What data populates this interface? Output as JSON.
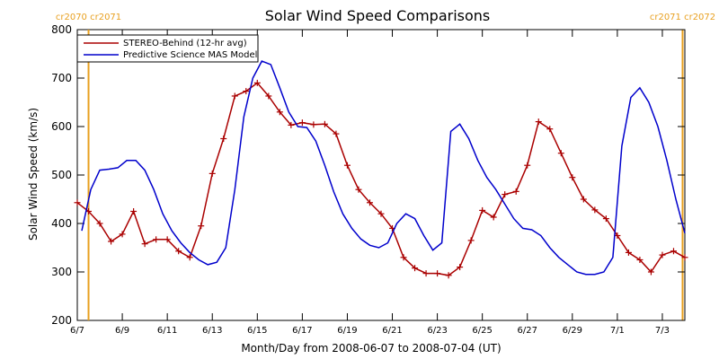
{
  "chart_data": {
    "type": "line",
    "title": "Solar Wind Speed Comparisons",
    "xlabel": "Month/Day from 2008-06-07 to 2008-07-04 (UT)",
    "ylabel": "Solar Wind Speed (km/s)",
    "xlim_days": [
      0,
      27
    ],
    "ylim": [
      200,
      800
    ],
    "yticks": [
      200,
      300,
      400,
      500,
      600,
      700,
      800
    ],
    "xtick_labels": [
      "6/7",
      "6/9",
      "6/11",
      "6/13",
      "6/15",
      "6/17",
      "6/19",
      "6/21",
      "6/23",
      "6/25",
      "6/27",
      "6/29",
      "7/1",
      "7/3"
    ],
    "xtick_days": [
      0,
      2,
      4,
      6,
      8,
      10,
      12,
      14,
      16,
      18,
      20,
      22,
      24,
      26
    ],
    "grid": false,
    "legend_placement": "top-left",
    "rotations": [
      {
        "labels": [
          "cr2070",
          "cr2071"
        ],
        "day": 0.5
      },
      {
        "labels": [
          "cr2071",
          "cr2072"
        ],
        "day": 26.9
      }
    ],
    "series": [
      {
        "name": "STEREO-Behind (12-hr avg)",
        "color": "#aa0000",
        "marker": "+",
        "x": [
          0.0,
          0.5,
          1.0,
          1.5,
          2.0,
          2.5,
          3.0,
          3.5,
          4.0,
          4.5,
          5.0,
          5.5,
          6.0,
          6.5,
          7.0,
          7.5,
          8.0,
          8.5,
          9.0,
          9.5,
          10.0,
          10.5,
          11.0,
          11.5,
          12.0,
          12.5,
          13.0,
          13.5,
          14.0,
          14.5,
          15.0,
          15.5,
          16.0,
          16.5,
          17.0,
          17.5,
          18.0,
          18.5,
          19.0,
          19.5,
          20.0,
          20.5,
          21.0,
          21.5,
          22.0,
          22.5,
          23.0,
          23.5,
          24.0,
          24.5,
          25.0,
          25.5,
          26.0,
          26.5,
          27.0
        ],
        "y": [
          443,
          425,
          400,
          363,
          378,
          425,
          358,
          367,
          367,
          343,
          330,
          395,
          503,
          575,
          663,
          673,
          690,
          663,
          630,
          603,
          608,
          604,
          605,
          585,
          520,
          470,
          443,
          420,
          390,
          330,
          308,
          297,
          297,
          293,
          310,
          365,
          427,
          413,
          460,
          466,
          520,
          610,
          595,
          545,
          495,
          450,
          428,
          410,
          375,
          340,
          325,
          300,
          335,
          343,
          330
        ]
      },
      {
        "name": "Predictive Science MAS Model",
        "color": "#0000cc",
        "marker": "",
        "x": [
          0.2,
          0.6,
          1.0,
          1.4,
          1.8,
          2.2,
          2.6,
          3.0,
          3.4,
          3.8,
          4.2,
          4.6,
          5.0,
          5.4,
          5.8,
          6.2,
          6.6,
          7.0,
          7.4,
          7.8,
          8.2,
          8.6,
          9.0,
          9.4,
          9.8,
          10.2,
          10.6,
          11.0,
          11.4,
          11.8,
          12.2,
          12.6,
          13.0,
          13.4,
          13.8,
          14.2,
          14.6,
          15.0,
          15.4,
          15.8,
          16.2,
          16.6,
          17.0,
          17.4,
          17.8,
          18.2,
          18.6,
          19.0,
          19.4,
          19.8,
          20.2,
          20.6,
          21.0,
          21.4,
          21.8,
          22.2,
          22.6,
          23.0,
          23.4,
          23.8,
          24.2,
          24.6,
          25.0,
          25.4,
          25.8,
          26.2,
          26.6,
          27.0
        ],
        "y": [
          385,
          470,
          510,
          512,
          515,
          530,
          530,
          510,
          470,
          420,
          385,
          360,
          340,
          325,
          315,
          320,
          350,
          470,
          620,
          700,
          735,
          728,
          680,
          630,
          600,
          598,
          570,
          520,
          465,
          420,
          390,
          368,
          355,
          350,
          360,
          400,
          420,
          410,
          375,
          345,
          360,
          590,
          605,
          575,
          530,
          495,
          470,
          440,
          410,
          390,
          387,
          375,
          350,
          330,
          315,
          300,
          295,
          295,
          300,
          330,
          560,
          660,
          680,
          650,
          600,
          530,
          450,
          380
        ]
      }
    ]
  }
}
